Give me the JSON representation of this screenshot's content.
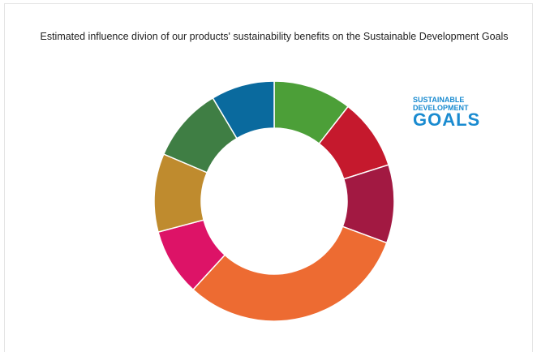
{
  "chart_data": {
    "type": "pie",
    "donut": true,
    "title": "Estimated influence divion of our products' sustainability benefits on the Sustainable Development Goals",
    "values": [
      10.5,
      9.5,
      10.5,
      31.0,
      9.0,
      10.5,
      10.0,
      8.5
    ],
    "colors": [
      "#4c9f38",
      "#c5192d",
      "#a21942",
      "#ed6b32",
      "#dd1367",
      "#bf8b2e",
      "#3f7e44",
      "#0a6a9e"
    ]
  },
  "logo": {
    "line1": "SUSTAINABLE",
    "line2": "DEVELOPMENT",
    "line3": "GOALS"
  }
}
